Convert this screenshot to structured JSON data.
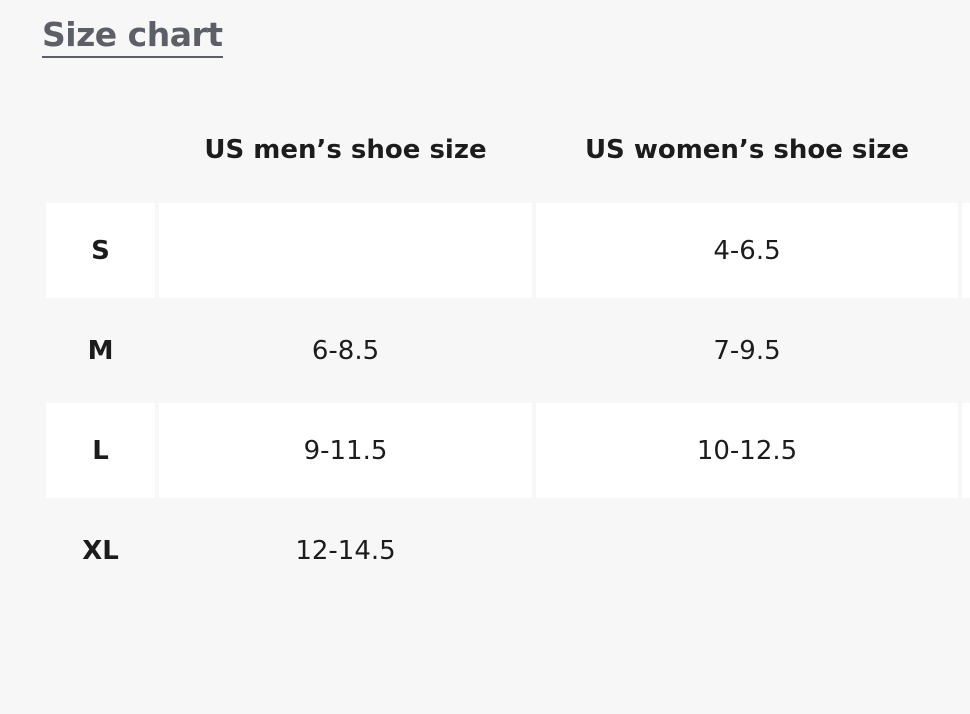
{
  "header": {
    "title": "Size chart"
  },
  "table": {
    "columns": [
      "US men’s shoe size",
      "US women’s shoe size"
    ],
    "rows": [
      [
        "S",
        null,
        "4-6.5"
      ],
      [
        "M",
        "6-8.5",
        "7-9.5"
      ],
      [
        "L",
        "9-11.5",
        "10-12.5"
      ],
      [
        "XL",
        "12-14.5",
        null
      ]
    ]
  }
}
